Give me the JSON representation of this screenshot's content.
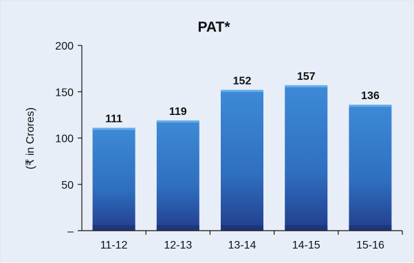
{
  "chart_data": {
    "type": "bar",
    "title": "PAT*",
    "ylabel": "(₹ in Crores)",
    "xlabel": "",
    "categories": [
      "11-12",
      "12-13",
      "13-14",
      "14-15",
      "15-16"
    ],
    "values": [
      111,
      119,
      152,
      157,
      136
    ],
    "data_labels": [
      "111",
      "119",
      "152",
      "157",
      "136"
    ],
    "ylim": [
      0,
      200
    ],
    "yticks": [
      0,
      50,
      100,
      150,
      200
    ],
    "ytick_labels": [
      "–",
      "50",
      "100",
      "150",
      "200"
    ],
    "grid": false,
    "legend": "none",
    "colors": {
      "background": "#e8eef7",
      "bar_top": "#3d8ad6",
      "bar_bottom": "#233d8c",
      "axis": "#111111"
    }
  }
}
